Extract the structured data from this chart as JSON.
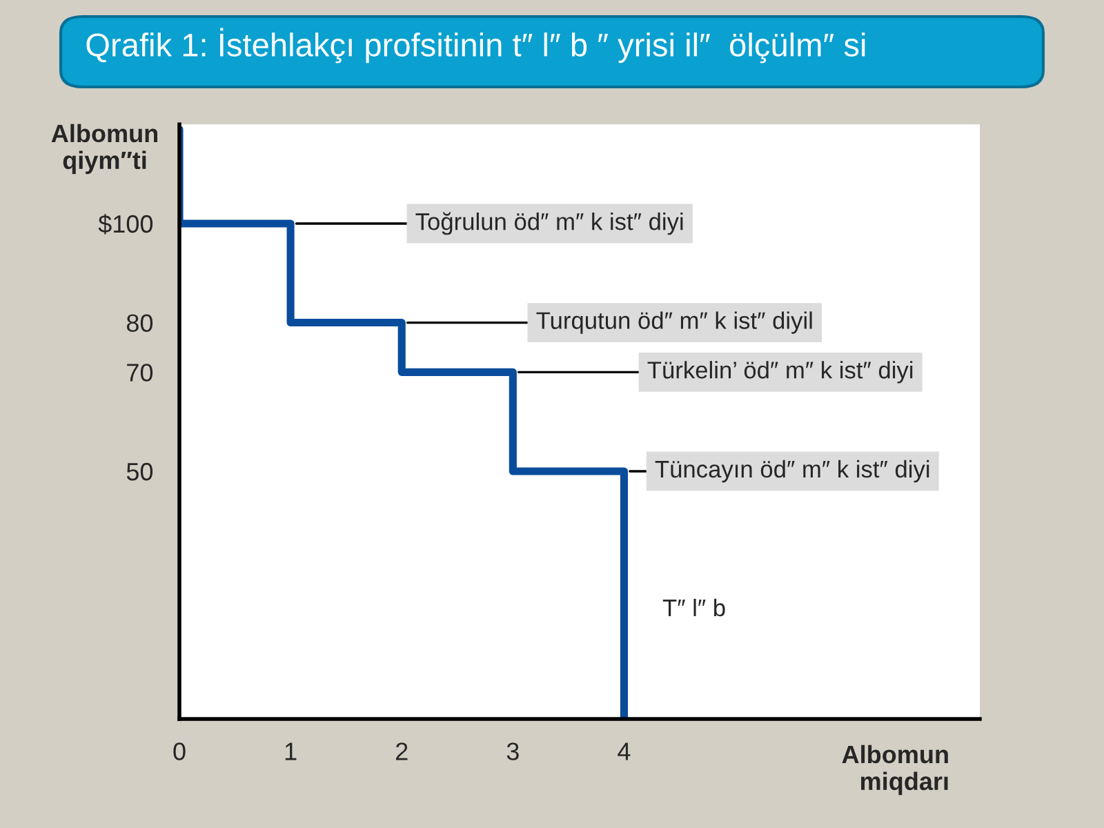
{
  "chart_data": {
    "type": "line",
    "title": "Qrafik 1: İstehlakçı profsitinin t″ l″ b ″ yrisi il″  ölçülm″ si",
    "xlabel": "Albomun\nmiqdarı",
    "ylabel": "Albomun\nqiym″ti",
    "x": [
      0,
      0,
      1,
      1,
      2,
      2,
      3,
      3,
      4,
      4
    ],
    "series": [
      {
        "color": "#0a4c9c",
        "values": [
          119,
          100,
          100,
          80,
          80,
          70,
          70,
          50,
          50,
          0
        ]
      }
    ],
    "xlim": [
      0,
      7.2
    ],
    "ylim": [
      0,
      120
    ],
    "xticks": [
      0,
      1,
      2,
      3,
      4
    ],
    "yticks": [
      {
        "value": 100,
        "label": "$100"
      },
      80,
      70,
      50
    ],
    "annotations": [
      {
        "text": "Toğrulun öd″ m″ k ist″ diyi",
        "x": 1,
        "y": 100
      },
      {
        "text": "Turqutun öd″ m″ k ist″ diyil",
        "x": 2,
        "y": 80
      },
      {
        "text": "Türkelin’ öd″ m″ k ist″ diyi",
        "x": 3,
        "y": 70
      },
      {
        "text": "Tüncayın öd″ m″ k ist″ diyi",
        "x": 4,
        "y": 50
      },
      {
        "text": "T″ l″ b",
        "x": 4,
        "y": 22
      }
    ],
    "grid": false,
    "legend": false,
    "line_style": "solid",
    "marker": "none"
  }
}
